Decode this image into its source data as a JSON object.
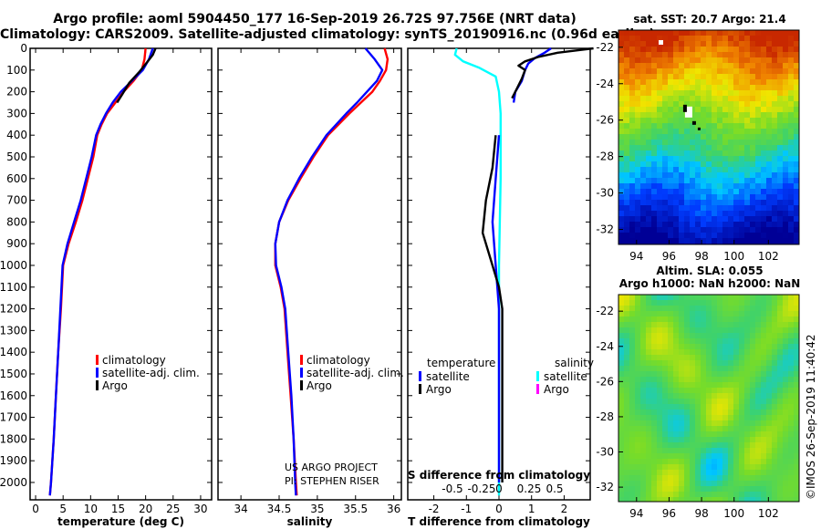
{
  "header": {
    "line1": "Argo profile: aoml 5904450_177 16-Sep-2019 26.72S 97.756E (NRT data)",
    "line2": "Climatology: CARS2009. Satellite-adjusted climatology: synTS_20190916.nc (0.96d earlier)"
  },
  "colors": {
    "climatology": "#ff0000",
    "satellite": "#0000ff",
    "argo": "#000000",
    "sat_salinity": "#00ffff",
    "argo_salinity": "#ff00ff"
  },
  "chart_data": [
    {
      "type": "line",
      "name": "temperature-profile",
      "xlabel": "temperature (deg C)",
      "ylabel": "",
      "xlim": [
        -1,
        32
      ],
      "ylim": [
        2080,
        0
      ],
      "xticks": [
        0,
        5,
        10,
        15,
        20,
        25,
        30
      ],
      "yticks": [
        0,
        100,
        200,
        300,
        400,
        500,
        600,
        700,
        800,
        900,
        1000,
        1100,
        1200,
        1300,
        1400,
        1500,
        1600,
        1700,
        1800,
        1900,
        2000
      ],
      "legend": [
        "climatology",
        "satellite-adj. clim.",
        "Argo"
      ],
      "series": [
        {
          "name": "climatology",
          "color": "#ff0000",
          "points": [
            [
              20,
              0
            ],
            [
              19.8,
              50
            ],
            [
              19.3,
              100
            ],
            [
              17.8,
              150
            ],
            [
              16,
              200
            ],
            [
              14.5,
              250
            ],
            [
              13,
              300
            ],
            [
              12,
              350
            ],
            [
              11.2,
              400
            ],
            [
              10.5,
              500
            ],
            [
              9.5,
              600
            ],
            [
              8.5,
              700
            ],
            [
              7.3,
              800
            ],
            [
              6,
              900
            ],
            [
              5,
              1000
            ],
            [
              4.6,
              1200
            ],
            [
              4.1,
              1400
            ],
            [
              3.7,
              1600
            ],
            [
              3.3,
              1800
            ],
            [
              2.8,
              2000
            ],
            [
              2.6,
              2060
            ]
          ]
        },
        {
          "name": "satellite-adj. clim.",
          "color": "#0000ff",
          "points": [
            [
              21.3,
              0
            ],
            [
              20.6,
              50
            ],
            [
              19.5,
              100
            ],
            [
              17.5,
              150
            ],
            [
              15.5,
              200
            ],
            [
              14,
              250
            ],
            [
              12.8,
              300
            ],
            [
              11.8,
              350
            ],
            [
              11,
              400
            ],
            [
              10.2,
              500
            ],
            [
              9.2,
              600
            ],
            [
              8.2,
              700
            ],
            [
              7,
              800
            ],
            [
              5.8,
              900
            ],
            [
              4.9,
              1000
            ],
            [
              4.5,
              1200
            ],
            [
              4.1,
              1400
            ],
            [
              3.7,
              1600
            ],
            [
              3.3,
              1800
            ],
            [
              2.8,
              2000
            ],
            [
              2.6,
              2060
            ]
          ]
        },
        {
          "name": "Argo",
          "color": "#000000",
          "points": [
            [
              21.8,
              0
            ],
            [
              21.3,
              30
            ],
            [
              20.4,
              60
            ],
            [
              18.8,
              110
            ],
            [
              17,
              160
            ],
            [
              15.8,
              210
            ],
            [
              14.8,
              250
            ]
          ]
        }
      ]
    },
    {
      "type": "line",
      "name": "salinity-profile",
      "xlabel": "salinity",
      "xlim": [
        33.7,
        36.1
      ],
      "ylim": [
        2080,
        0
      ],
      "xticks": [
        34,
        34.5,
        35,
        35.5,
        36
      ],
      "legend": [
        "climatology",
        "satellite-adj. clim.",
        "Argo"
      ],
      "credit1": "US ARGO PROJECT",
      "credit2": "PI: STEPHEN RISER",
      "series": [
        {
          "name": "climatology",
          "color": "#ff0000",
          "points": [
            [
              35.88,
              0
            ],
            [
              35.92,
              50
            ],
            [
              35.9,
              100
            ],
            [
              35.82,
              150
            ],
            [
              35.72,
              200
            ],
            [
              35.57,
              250
            ],
            [
              35.42,
              300
            ],
            [
              35.28,
              350
            ],
            [
              35.14,
              400
            ],
            [
              34.95,
              500
            ],
            [
              34.78,
              600
            ],
            [
              34.62,
              700
            ],
            [
              34.5,
              800
            ],
            [
              34.45,
              900
            ],
            [
              34.45,
              1000
            ],
            [
              34.52,
              1100
            ],
            [
              34.57,
              1200
            ],
            [
              34.61,
              1400
            ],
            [
              34.65,
              1600
            ],
            [
              34.69,
              1800
            ],
            [
              34.72,
              2000
            ],
            [
              34.73,
              2060
            ]
          ]
        },
        {
          "name": "satellite-adj. clim.",
          "color": "#0000ff",
          "points": [
            [
              35.63,
              0
            ],
            [
              35.75,
              50
            ],
            [
              35.85,
              100
            ],
            [
              35.78,
              150
            ],
            [
              35.65,
              200
            ],
            [
              35.52,
              250
            ],
            [
              35.38,
              300
            ],
            [
              35.25,
              350
            ],
            [
              35.12,
              400
            ],
            [
              34.93,
              500
            ],
            [
              34.76,
              600
            ],
            [
              34.61,
              700
            ],
            [
              34.5,
              800
            ],
            [
              34.45,
              900
            ],
            [
              34.46,
              1000
            ],
            [
              34.53,
              1100
            ],
            [
              34.58,
              1200
            ],
            [
              34.62,
              1400
            ],
            [
              34.66,
              1600
            ],
            [
              34.69,
              1800
            ],
            [
              34.71,
              2000
            ],
            [
              34.72,
              2060
            ]
          ]
        },
        {
          "name": "Argo",
          "color": "#000000",
          "points": []
        }
      ]
    },
    {
      "type": "line",
      "name": "difference-profile",
      "xlabel": "T difference from climatology",
      "top_label": "S difference from climatology",
      "xlim": [
        -2.8,
        2.8
      ],
      "xticks": [
        -2,
        -1,
        0,
        1,
        2
      ],
      "s_ticks": [
        "-0.5",
        "-0.25",
        "0",
        "0.25",
        "0.5"
      ],
      "legend_temperature_title": "temperature",
      "legend_salinity_title": "salinity",
      "legend_temperature": [
        "satellite",
        "Argo"
      ],
      "legend_salinity": [
        "satellite",
        "Argo"
      ],
      "series": [
        {
          "name": "T satellite",
          "color": "#0000ff",
          "points": [
            [
              1.6,
              0
            ],
            [
              1.4,
              20
            ],
            [
              1.1,
              45
            ],
            [
              0.9,
              70
            ],
            [
              0.8,
              100
            ],
            [
              0.7,
              150
            ],
            [
              0.5,
              200
            ],
            [
              0.45,
              250
            ]
          ]
        },
        {
          "name": "T Argo",
          "color": "#000000",
          "points": [
            [
              2.9,
              0
            ],
            [
              1.8,
              20
            ],
            [
              1.2,
              40
            ],
            [
              0.8,
              60
            ],
            [
              0.6,
              80
            ],
            [
              0.8,
              100
            ],
            [
              0.7,
              140
            ],
            [
              0.5,
              200
            ],
            [
              0.4,
              230
            ]
          ]
        },
        {
          "name": "S satellite",
          "color": "#00ffff",
          "points": [
            [
              -1.3,
              0
            ],
            [
              -1.35,
              30
            ],
            [
              -1.1,
              60
            ],
            [
              -0.6,
              90
            ],
            [
              -0.1,
              130
            ],
            [
              0,
              200
            ],
            [
              0.05,
              300
            ],
            [
              0.05,
              600
            ],
            [
              0,
              1000
            ],
            [
              0,
              1500
            ],
            [
              0,
              2000
            ],
            [
              0,
              2060
            ]
          ]
        },
        {
          "name": "T satellite deep",
          "color": "#0000ff",
          "points": [
            [
              0,
              400
            ],
            [
              -0.1,
              600
            ],
            [
              -0.2,
              800
            ],
            [
              -0.1,
              1000
            ],
            [
              0,
              1200
            ],
            [
              0,
              1500
            ],
            [
              0,
              2000
            ]
          ]
        },
        {
          "name": "T Argo deep",
          "color": "#000000",
          "points": [
            [
              -0.1,
              400
            ],
            [
              -0.2,
              550
            ],
            [
              -0.4,
              700
            ],
            [
              -0.5,
              850
            ],
            [
              -0.3,
              950
            ],
            [
              0,
              1100
            ],
            [
              0.1,
              1200
            ],
            [
              0.1,
              1500
            ],
            [
              0.1,
              2000
            ]
          ]
        }
      ]
    },
    {
      "type": "heatmap",
      "name": "sst-map",
      "title": "sat. SST: 20.7 Argo: 21.4",
      "xticks": [
        "94",
        "96",
        "98",
        "100",
        "102"
      ],
      "yticks": [
        "-22",
        "-24",
        "-26",
        "-28",
        "-30",
        "-32"
      ],
      "lon_range": [
        92.5,
        103.7
      ],
      "lat_range": [
        -32.8,
        -21.2
      ],
      "argo_position": [
        97.756,
        -26.72
      ]
    },
    {
      "type": "heatmap",
      "name": "sla-map",
      "title1": "Altim. SLA: 0.055",
      "title2": "Argo h1000: NaN h2000: NaN",
      "xticks": [
        "94",
        "96",
        "98",
        "100",
        "102"
      ],
      "yticks": [
        "-22",
        "-24",
        "-26",
        "-28",
        "-30",
        "-32"
      ]
    }
  ],
  "watermark": "©IMOS 26-Sep-2019 11:40:42"
}
